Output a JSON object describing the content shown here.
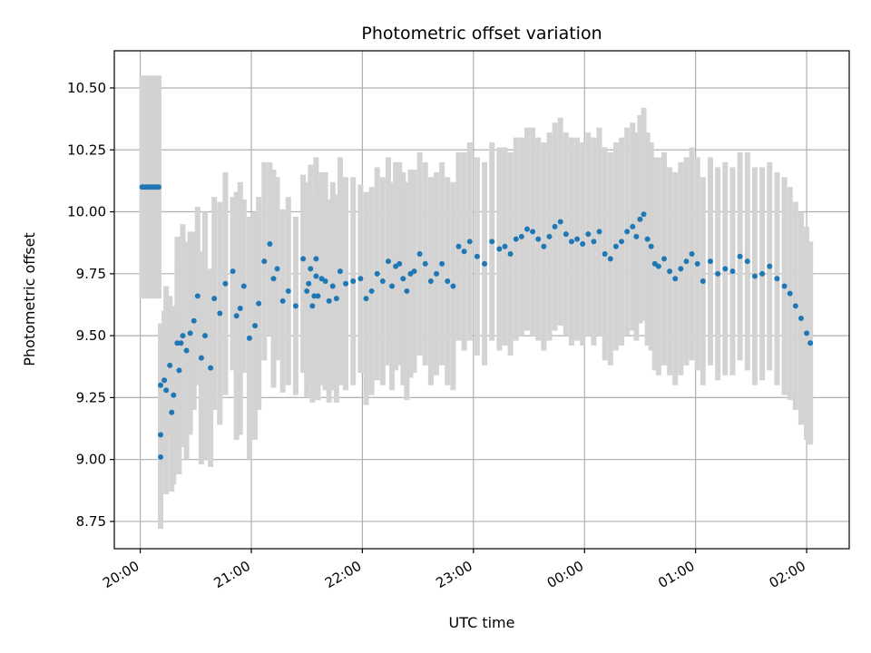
{
  "chart_data": {
    "type": "scatter",
    "title": "Photometric offset variation",
    "xlabel": "UTC time",
    "ylabel": "Photometric offset",
    "xlim": [
      "19:46",
      "02:23"
    ],
    "ylim": [
      8.64,
      10.65
    ],
    "x_ticks": [
      "20:00",
      "21:00",
      "22:00",
      "23:00",
      "00:00",
      "01:00",
      "02:00"
    ],
    "y_ticks": [
      "8.75",
      "9.00",
      "9.25",
      "9.50",
      "9.75",
      "10.00",
      "10.25",
      "10.50"
    ],
    "grid": true,
    "colors": {
      "points": "#1f77b4",
      "error_bars": "#d3d3d3",
      "grid": "#b0b0b0"
    },
    "series": [
      {
        "x": [
          "20:01",
          "20:02",
          "20:03",
          "20:04",
          "20:05",
          "20:06",
          "20:07",
          "20:08",
          "20:09",
          "20:10",
          "20:11",
          "20:11",
          "20:11",
          "20:13",
          "20:14",
          "20:16",
          "20:17",
          "20:18",
          "20:20",
          "20:21",
          "20:22",
          "20:23",
          "20:25",
          "20:27",
          "20:29",
          "20:31",
          "20:33",
          "20:35",
          "20:38",
          "20:40",
          "20:43",
          "20:46",
          "20:50",
          "20:52",
          "20:54",
          "20:56",
          "20:59",
          "21:02",
          "21:04",
          "21:07",
          "21:10",
          "21:12",
          "21:14",
          "21:17",
          "21:20",
          "21:24",
          "21:28",
          "21:30",
          "21:31",
          "21:32",
          "21:33",
          "21:34",
          "21:35",
          "21:35",
          "21:36",
          "21:38",
          "21:40",
          "21:42",
          "21:44",
          "21:46",
          "21:48",
          "21:51",
          "21:55",
          "21:59",
          "22:02",
          "22:05",
          "22:08",
          "22:11",
          "22:14",
          "22:16",
          "22:18",
          "22:20",
          "22:22",
          "22:24",
          "22:26",
          "22:28",
          "22:31",
          "22:34",
          "22:37",
          "22:40",
          "22:43",
          "22:46",
          "22:49",
          "22:52",
          "22:55",
          "22:58",
          "23:02",
          "23:06",
          "23:10",
          "23:14",
          "23:17",
          "23:20",
          "23:23",
          "23:26",
          "23:29",
          "23:32",
          "23:35",
          "23:38",
          "23:41",
          "23:44",
          "23:47",
          "23:50",
          "23:53",
          "23:56",
          "23:59",
          "00:02",
          "00:05",
          "00:08",
          "00:11",
          "00:14",
          "00:17",
          "00:20",
          "00:23",
          "00:26",
          "00:28",
          "00:30",
          "00:32",
          "00:34",
          "00:36",
          "00:38",
          "00:40",
          "00:43",
          "00:46",
          "00:49",
          "00:52",
          "00:55",
          "00:58",
          "01:01",
          "01:04",
          "01:08",
          "01:12",
          "01:16",
          "01:20",
          "01:24",
          "01:28",
          "01:32",
          "01:36",
          "01:40",
          "01:44",
          "01:48",
          "01:51",
          "01:54",
          "01:57",
          "02:00",
          "02:02"
        ],
        "y": [
          10.1,
          10.1,
          10.1,
          10.1,
          10.1,
          10.1,
          10.1,
          10.1,
          10.1,
          10.1,
          9.01,
          9.3,
          9.1,
          9.32,
          9.28,
          9.38,
          9.19,
          9.26,
          9.47,
          9.36,
          9.47,
          9.5,
          9.44,
          9.51,
          9.56,
          9.66,
          9.41,
          9.5,
          9.37,
          9.65,
          9.59,
          9.71,
          9.76,
          9.58,
          9.61,
          9.7,
          9.49,
          9.54,
          9.63,
          9.8,
          9.87,
          9.73,
          9.77,
          9.64,
          9.68,
          9.62,
          9.81,
          9.68,
          9.71,
          9.77,
          9.62,
          9.66,
          9.74,
          9.81,
          9.66,
          9.73,
          9.72,
          9.64,
          9.7,
          9.65,
          9.76,
          9.71,
          9.72,
          9.73,
          9.65,
          9.68,
          9.75,
          9.72,
          9.8,
          9.7,
          9.78,
          9.79,
          9.73,
          9.68,
          9.75,
          9.76,
          9.83,
          9.79,
          9.72,
          9.75,
          9.79,
          9.72,
          9.7,
          9.86,
          9.84,
          9.88,
          9.82,
          9.79,
          9.88,
          9.85,
          9.86,
          9.83,
          9.89,
          9.9,
          9.93,
          9.92,
          9.89,
          9.86,
          9.9,
          9.94,
          9.96,
          9.91,
          9.88,
          9.89,
          9.87,
          9.91,
          9.88,
          9.92,
          9.83,
          9.81,
          9.86,
          9.88,
          9.92,
          9.94,
          9.9,
          9.97,
          9.99,
          9.89,
          9.86,
          9.79,
          9.78,
          9.81,
          9.76,
          9.73,
          9.77,
          9.8,
          9.83,
          9.79,
          9.72,
          9.8,
          9.75,
          9.77,
          9.76,
          9.82,
          9.8,
          9.74,
          9.75,
          9.78,
          9.73,
          9.7,
          9.67,
          9.62,
          9.57,
          9.51,
          9.47
        ],
        "y_error_range": [
          [
            9.65,
            10.55
          ],
          [
            9.65,
            10.55
          ],
          [
            9.65,
            10.55
          ],
          [
            9.65,
            10.55
          ],
          [
            9.65,
            10.55
          ],
          [
            9.65,
            10.55
          ],
          [
            9.65,
            10.55
          ],
          [
            9.65,
            10.55
          ],
          [
            9.65,
            10.55
          ],
          [
            9.65,
            10.55
          ],
          [
            8.72,
            9.3
          ],
          [
            9.05,
            9.55
          ],
          [
            8.8,
            9.4
          ],
          [
            9.0,
            9.6
          ],
          [
            8.86,
            9.7
          ],
          [
            9.1,
            9.66
          ],
          [
            8.87,
            9.51
          ],
          [
            8.9,
            9.62
          ],
          [
            8.95,
            9.9
          ],
          [
            8.94,
            9.78
          ],
          [
            9.2,
            9.74
          ],
          [
            9.05,
            9.95
          ],
          [
            9.0,
            9.88
          ],
          [
            9.1,
            9.92
          ],
          [
            9.2,
            9.92
          ],
          [
            9.3,
            10.02
          ],
          [
            8.98,
            9.84
          ],
          [
            9.0,
            10.0
          ],
          [
            8.97,
            9.77
          ],
          [
            9.2,
            10.06
          ],
          [
            9.14,
            10.04
          ],
          [
            9.26,
            10.16
          ],
          [
            9.36,
            10.06
          ],
          [
            9.08,
            10.08
          ],
          [
            9.1,
            10.12
          ],
          [
            9.35,
            10.05
          ],
          [
            9.0,
            9.98
          ],
          [
            9.08,
            10.0
          ],
          [
            9.2,
            10.06
          ],
          [
            9.4,
            10.2
          ],
          [
            9.5,
            10.2
          ],
          [
            9.29,
            10.17
          ],
          [
            9.4,
            10.14
          ],
          [
            9.27,
            10.01
          ],
          [
            9.3,
            10.06
          ],
          [
            9.26,
            9.98
          ],
          [
            9.35,
            10.15
          ],
          [
            9.25,
            10.1
          ],
          [
            9.3,
            10.12
          ],
          [
            9.35,
            10.19
          ],
          [
            9.23,
            10.01
          ],
          [
            9.26,
            10.06
          ],
          [
            9.35,
            10.13
          ],
          [
            9.4,
            10.22
          ],
          [
            9.24,
            10.08
          ],
          [
            9.3,
            10.16
          ],
          [
            9.28,
            10.16
          ],
          [
            9.23,
            10.05
          ],
          [
            9.28,
            10.12
          ],
          [
            9.23,
            10.07
          ],
          [
            9.3,
            10.22
          ],
          [
            9.28,
            10.14
          ],
          [
            9.3,
            10.14
          ],
          [
            9.35,
            10.11
          ],
          [
            9.22,
            10.08
          ],
          [
            9.26,
            10.1
          ],
          [
            9.32,
            10.18
          ],
          [
            9.3,
            10.14
          ],
          [
            9.38,
            10.22
          ],
          [
            9.28,
            10.12
          ],
          [
            9.36,
            10.2
          ],
          [
            9.38,
            10.2
          ],
          [
            9.3,
            10.16
          ],
          [
            9.24,
            10.12
          ],
          [
            9.33,
            10.17
          ],
          [
            9.35,
            10.17
          ],
          [
            9.42,
            10.24
          ],
          [
            9.38,
            10.2
          ],
          [
            9.3,
            10.14
          ],
          [
            9.34,
            10.16
          ],
          [
            9.38,
            10.2
          ],
          [
            9.3,
            10.14
          ],
          [
            9.28,
            10.12
          ],
          [
            9.48,
            10.24
          ],
          [
            9.44,
            10.24
          ],
          [
            9.48,
            10.28
          ],
          [
            9.42,
            10.22
          ],
          [
            9.38,
            10.2
          ],
          [
            9.48,
            10.28
          ],
          [
            9.44,
            10.26
          ],
          [
            9.46,
            10.26
          ],
          [
            9.42,
            10.24
          ],
          [
            9.48,
            10.3
          ],
          [
            9.5,
            10.3
          ],
          [
            9.52,
            10.34
          ],
          [
            9.5,
            10.34
          ],
          [
            9.48,
            10.3
          ],
          [
            9.44,
            10.28
          ],
          [
            9.48,
            10.32
          ],
          [
            9.52,
            10.36
          ],
          [
            9.54,
            10.38
          ],
          [
            9.5,
            10.32
          ],
          [
            9.46,
            10.3
          ],
          [
            9.48,
            10.3
          ],
          [
            9.46,
            10.28
          ],
          [
            9.5,
            10.32
          ],
          [
            9.46,
            10.3
          ],
          [
            9.5,
            10.34
          ],
          [
            9.4,
            10.26
          ],
          [
            9.38,
            10.24
          ],
          [
            9.44,
            10.28
          ],
          [
            9.46,
            10.3
          ],
          [
            9.5,
            10.34
          ],
          [
            9.52,
            10.36
          ],
          [
            9.48,
            10.32
          ],
          [
            9.55,
            10.39
          ],
          [
            9.56,
            10.42
          ],
          [
            9.46,
            10.32
          ],
          [
            9.44,
            10.28
          ],
          [
            9.36,
            10.22
          ],
          [
            9.34,
            10.22
          ],
          [
            9.38,
            10.24
          ],
          [
            9.34,
            10.18
          ],
          [
            9.3,
            10.16
          ],
          [
            9.34,
            10.2
          ],
          [
            9.38,
            10.22
          ],
          [
            9.4,
            10.26
          ],
          [
            9.36,
            10.22
          ],
          [
            9.3,
            10.14
          ],
          [
            9.38,
            10.22
          ],
          [
            9.32,
            10.18
          ],
          [
            9.34,
            10.2
          ],
          [
            9.34,
            10.18
          ],
          [
            9.4,
            10.24
          ],
          [
            9.36,
            10.24
          ],
          [
            9.3,
            10.18
          ],
          [
            9.32,
            10.18
          ],
          [
            9.36,
            10.2
          ],
          [
            9.3,
            10.16
          ],
          [
            9.26,
            10.14
          ],
          [
            9.24,
            10.1
          ],
          [
            9.2,
            10.04
          ],
          [
            9.14,
            10.0
          ],
          [
            9.08,
            9.94
          ],
          [
            9.06,
            9.88
          ]
        ]
      }
    ]
  }
}
